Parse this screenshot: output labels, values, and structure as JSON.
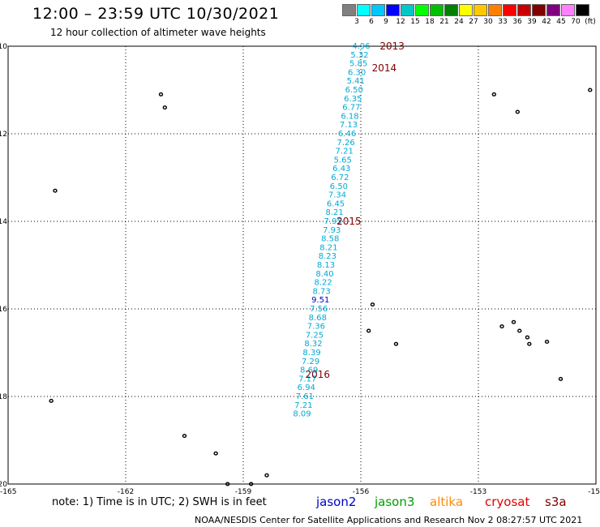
{
  "title": "12:00 – 23:59 UTC 10/30/2021",
  "subtitle": "12 hour collection of altimeter wave heights",
  "legend": {
    "unit": "(ft)",
    "ticks": [
      "3",
      "6",
      "9",
      "12",
      "15",
      "18",
      "21",
      "24",
      "27",
      "30",
      "33",
      "36",
      "39",
      "42",
      "45",
      "70"
    ],
    "colors": [
      "#808080",
      "#00ffff",
      "#00c8ff",
      "#0000ff",
      "#00c8c8",
      "#00ff00",
      "#00c000",
      "#008000",
      "#ffff00",
      "#ffc800",
      "#ff8000",
      "#ff0000",
      "#c80000",
      "#800000",
      "#800080",
      "#ff80ff",
      "#000000"
    ]
  },
  "map": {
    "lat_ticks": [
      "-10",
      "-12",
      "-14",
      "-16",
      "-18",
      "-20"
    ],
    "lon_ticks": [
      "-165",
      "-162",
      "-159",
      "-156",
      "-153",
      "-15"
    ],
    "grid": true
  },
  "chart_data": {
    "type": "scatter",
    "xlim": [
      -165,
      -150
    ],
    "ylim": [
      -20,
      -10
    ],
    "track_color": "#00aad4",
    "series": [
      {
        "name": "jason2",
        "color": "#0000c8",
        "points": [
          {
            "lon": -155.76,
            "lat": -10.0,
            "swh": "4.96"
          },
          {
            "lon": -155.8,
            "lat": -10.2,
            "swh": "5.32"
          },
          {
            "lon": -155.83,
            "lat": -10.4,
            "swh": "5.85"
          },
          {
            "lon": -155.87,
            "lat": -10.6,
            "swh": "6.30"
          },
          {
            "lon": -155.9,
            "lat": -10.8,
            "swh": "5.41"
          },
          {
            "lon": -155.94,
            "lat": -11.0,
            "swh": "6.50"
          },
          {
            "lon": -155.97,
            "lat": -11.2,
            "swh": "6.35"
          },
          {
            "lon": -156.01,
            "lat": -11.4,
            "swh": "6.77"
          },
          {
            "lon": -156.05,
            "lat": -11.6,
            "swh": "6.18"
          },
          {
            "lon": -156.08,
            "lat": -11.8,
            "swh": "7.13"
          },
          {
            "lon": -156.12,
            "lat": -12.0,
            "swh": "6.46"
          },
          {
            "lon": -156.15,
            "lat": -12.2,
            "swh": "7.26"
          },
          {
            "lon": -156.19,
            "lat": -12.4,
            "swh": "7.21"
          },
          {
            "lon": -156.23,
            "lat": -12.6,
            "swh": "5.65"
          },
          {
            "lon": -156.26,
            "lat": -12.8,
            "swh": "6.43"
          },
          {
            "lon": -156.3,
            "lat": -13.0,
            "swh": "6.72"
          },
          {
            "lon": -156.33,
            "lat": -13.2,
            "swh": "6.50"
          },
          {
            "lon": -156.37,
            "lat": -13.4,
            "swh": "7.34"
          },
          {
            "lon": -156.41,
            "lat": -13.6,
            "swh": "6.45"
          },
          {
            "lon": -156.44,
            "lat": -13.8,
            "swh": "8.21"
          },
          {
            "lon": -156.48,
            "lat": -14.0,
            "swh": "7.95"
          },
          {
            "lon": -156.51,
            "lat": -14.2,
            "swh": "7.93"
          },
          {
            "lon": -156.55,
            "lat": -14.4,
            "swh": "8.58"
          },
          {
            "lon": -156.59,
            "lat": -14.6,
            "swh": "8.21"
          },
          {
            "lon": -156.62,
            "lat": -14.8,
            "swh": "8.23"
          },
          {
            "lon": -156.66,
            "lat": -15.0,
            "swh": "8.13"
          },
          {
            "lon": -156.69,
            "lat": -15.2,
            "swh": "8.40"
          },
          {
            "lon": -156.73,
            "lat": -15.4,
            "swh": "8.22"
          },
          {
            "lon": -156.77,
            "lat": -15.6,
            "swh": "8.73"
          },
          {
            "lon": -156.8,
            "lat": -15.8,
            "swh": "9.51"
          },
          {
            "lon": -156.84,
            "lat": -16.0,
            "swh": "7.56"
          },
          {
            "lon": -156.87,
            "lat": -16.2,
            "swh": "8.68"
          },
          {
            "lon": -156.91,
            "lat": -16.4,
            "swh": "7.36"
          },
          {
            "lon": -156.95,
            "lat": -16.6,
            "swh": "7.25"
          },
          {
            "lon": -156.98,
            "lat": -16.8,
            "swh": "8.32"
          },
          {
            "lon": -157.02,
            "lat": -17.0,
            "swh": "8.39"
          },
          {
            "lon": -157.05,
            "lat": -17.2,
            "swh": "7.29"
          },
          {
            "lon": -157.09,
            "lat": -17.4,
            "swh": "8.69"
          },
          {
            "lon": -157.13,
            "lat": -17.6,
            "swh": "7.17"
          },
          {
            "lon": -157.16,
            "lat": -17.8,
            "swh": "6.94"
          },
          {
            "lon": -157.2,
            "lat": -18.0,
            "swh": "7.61"
          },
          {
            "lon": -157.23,
            "lat": -18.2,
            "swh": "7.21"
          },
          {
            "lon": -157.27,
            "lat": -18.4,
            "swh": "8.09"
          }
        ]
      }
    ],
    "time_labels": [
      {
        "text": "2013",
        "lon": -155.6,
        "lat": -10.0
      },
      {
        "text": "2014",
        "lon": -155.8,
        "lat": -10.5
      },
      {
        "text": "2015",
        "lon": -156.7,
        "lat": -14.0
      },
      {
        "text": "2016",
        "lon": -157.5,
        "lat": -17.5
      }
    ],
    "islands": [
      {
        "lon": -161.1,
        "lat": -11.1
      },
      {
        "lon": -161.0,
        "lat": -11.4
      },
      {
        "lon": -163.8,
        "lat": -13.3
      },
      {
        "lon": -163.9,
        "lat": -18.1
      },
      {
        "lon": -160.5,
        "lat": -18.9
      },
      {
        "lon": -159.7,
        "lat": -19.3
      },
      {
        "lon": -159.4,
        "lat": -20.0
      },
      {
        "lon": -158.4,
        "lat": -19.8
      },
      {
        "lon": -158.8,
        "lat": -20.0
      },
      {
        "lon": -155.7,
        "lat": -15.9
      },
      {
        "lon": -155.8,
        "lat": -16.5
      },
      {
        "lon": -155.1,
        "lat": -16.8
      },
      {
        "lon": -152.6,
        "lat": -11.1
      },
      {
        "lon": -152.0,
        "lat": -11.5
      },
      {
        "lon": -152.1,
        "lat": -16.3
      },
      {
        "lon": -152.4,
        "lat": -16.4
      },
      {
        "lon": -151.95,
        "lat": -16.5
      },
      {
        "lon": -151.75,
        "lat": -16.65
      },
      {
        "lon": -151.7,
        "lat": -16.8
      },
      {
        "lon": -151.25,
        "lat": -16.75
      },
      {
        "lon": -150.9,
        "lat": -17.6
      },
      {
        "lon": -150.15,
        "lat": -11.0
      }
    ]
  },
  "footer": {
    "note": "note: 1) Time is in UTC; 2) SWH is in feet",
    "missions": [
      {
        "label": "jason2",
        "color": "#0000c8"
      },
      {
        "label": "jason3",
        "color": "#00a000"
      },
      {
        "label": "altika",
        "color": "#ff8c00"
      },
      {
        "label": "cryosat",
        "color": "#e00000"
      },
      {
        "label": "s3a",
        "color": "#800000"
      }
    ],
    "credit": "NOAA/NESDIS Center for Satellite Applications and Research    Nov  2 08:27:57 UTC 2021"
  }
}
